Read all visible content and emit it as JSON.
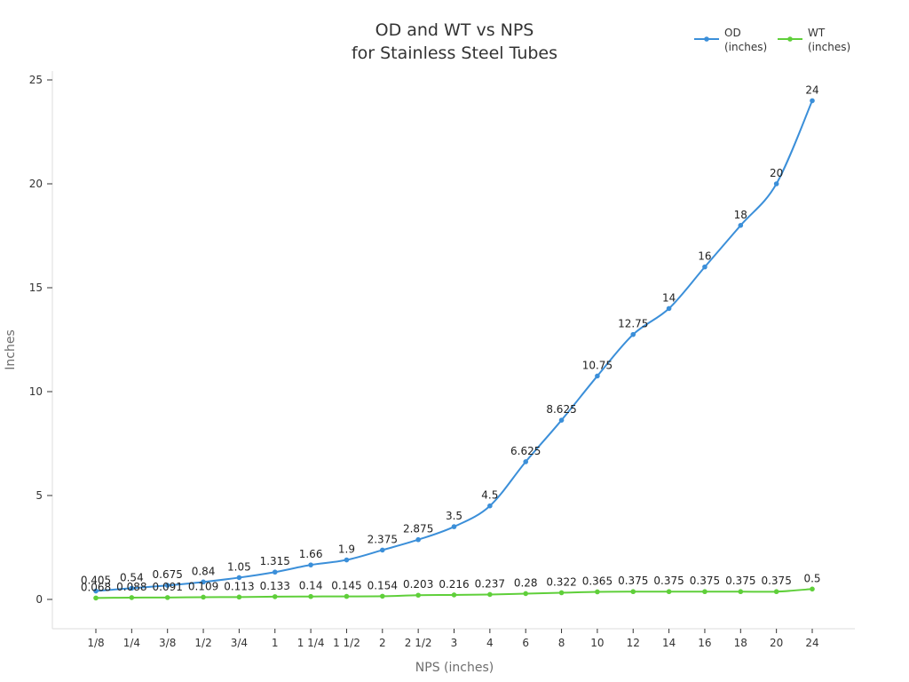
{
  "chart_data": {
    "type": "line",
    "title": "OD and WT vs NPS",
    "subtitle": "for Stainless Steel Tubes",
    "xlabel": "NPS (inches)",
    "ylabel": "Inches",
    "categories": [
      "1/8",
      "1/4",
      "3/8",
      "1/2",
      "3/4",
      "1",
      "1 1/4",
      "1 1/2",
      "2",
      "2 1/2",
      "3",
      "4",
      "6",
      "8",
      "10",
      "12",
      "14",
      "16",
      "18",
      "20",
      "24"
    ],
    "ylim": [
      0,
      25
    ],
    "yticks": [
      0,
      5,
      10,
      15,
      20,
      25
    ],
    "grid": false,
    "legend_position": "top-right",
    "series": [
      {
        "name": "OD",
        "name_line2": "(inches)",
        "color": "#3b8fd9",
        "values": [
          0.405,
          0.54,
          0.675,
          0.84,
          1.05,
          1.315,
          1.66,
          1.9,
          2.375,
          2.875,
          3.5,
          4.5,
          6.625,
          8.625,
          10.75,
          12.75,
          14,
          16,
          18,
          20,
          24
        ],
        "labels": [
          "0.405",
          "0.54",
          "0.675",
          "0.84",
          "1.05",
          "1.315",
          "1.66",
          "1.9",
          "2.375",
          "2.875",
          "3.5",
          "4.5",
          "6.625",
          "8.625",
          "10.75",
          "12.75",
          "14",
          "16",
          "18",
          "20",
          "24"
        ]
      },
      {
        "name": "WT",
        "name_line2": "(inches)",
        "color": "#5fcf3a",
        "values": [
          0.068,
          0.088,
          0.091,
          0.109,
          0.113,
          0.133,
          0.14,
          0.145,
          0.154,
          0.203,
          0.216,
          0.237,
          0.28,
          0.322,
          0.365,
          0.375,
          0.375,
          0.375,
          0.375,
          0.375,
          0.5
        ],
        "labels": [
          "0.068",
          "0.088",
          "0.091",
          "0.109",
          "0.113",
          "0.133",
          "0.14",
          "0.145",
          "0.154",
          "0.203",
          "0.216",
          "0.237",
          "0.28",
          "0.322",
          "0.365",
          "0.375",
          "0.375",
          "0.375",
          "0.375",
          "0.375",
          "0.5"
        ]
      }
    ]
  }
}
